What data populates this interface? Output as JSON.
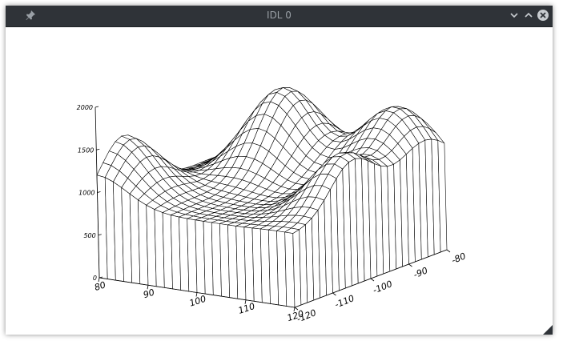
{
  "window": {
    "title": "IDL 0",
    "icons": {
      "pin": "pin-icon",
      "minimize": "chevron-down-icon",
      "maximize": "chevron-up-icon",
      "close": "close-icon"
    }
  },
  "chart_data": {
    "type": "surface",
    "title": "",
    "zlim": [
      0,
      2000
    ],
    "z_ticks": [
      "0",
      "500",
      "1000",
      "1500",
      "2000"
    ],
    "x_ticks": [
      "80",
      "90",
      "100",
      "110",
      "120"
    ],
    "y_ticks": [
      "-120",
      "-110",
      "-100",
      "-90",
      "-80"
    ],
    "grid": {
      "nx": 25,
      "ny": 25
    },
    "peaks": [
      {
        "x": 95,
        "y": -90,
        "z": 1850
      },
      {
        "x": 80,
        "y": -113,
        "z": 1550
      },
      {
        "x": 118,
        "y": -104,
        "z": 1500
      },
      {
        "x": 114,
        "y": -85,
        "z": 1700
      }
    ],
    "base_level": 850,
    "colors": {
      "line": "#000000",
      "background": "#ffffff"
    }
  }
}
